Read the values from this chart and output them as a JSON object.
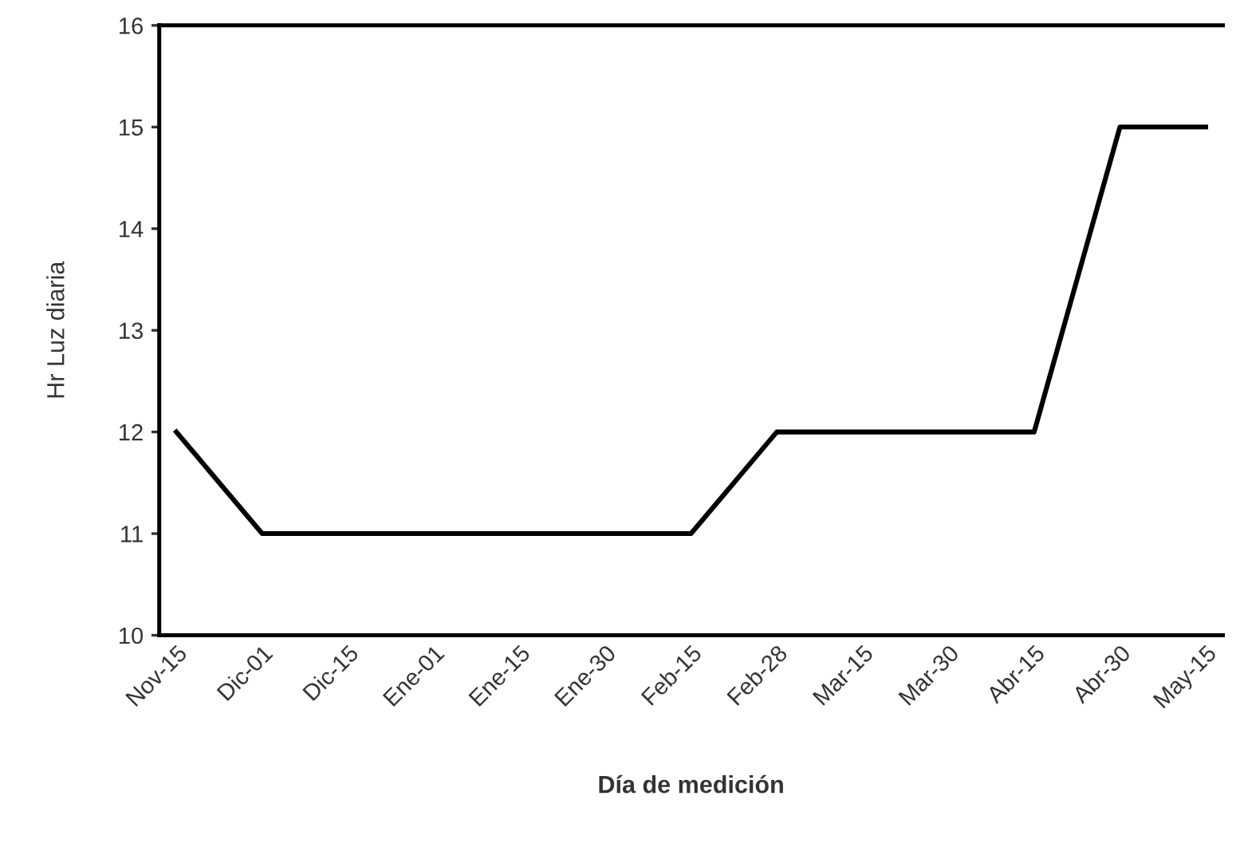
{
  "chart_data": {
    "type": "line",
    "xlabel": "Día de medición",
    "ylabel": "Hr Luz diaria",
    "categories": [
      "Nov-15",
      "Dic-01",
      "Dic-15",
      "Ene-01",
      "Ene-15",
      "Ene-30",
      "Feb-15",
      "Feb-28",
      "Mar-15",
      "Mar-30",
      "Abr-15",
      "Abr-30",
      "May-15"
    ],
    "series": [
      {
        "color": "#000000",
        "values": [
          12,
          11,
          11,
          11,
          11,
          11,
          11,
          12,
          12,
          12,
          12,
          15,
          15
        ]
      }
    ],
    "ylim": [
      10,
      16
    ],
    "yticks": [
      10,
      11,
      12,
      13,
      14,
      15,
      16
    ],
    "grid": false,
    "marker": "none",
    "line_style": "solid"
  }
}
